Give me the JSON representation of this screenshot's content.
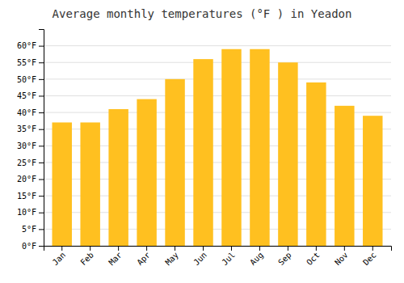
{
  "chart_data": {
    "type": "bar",
    "title": "Average monthly temperatures (°F ) in Yeadon",
    "categories": [
      "Jan",
      "Feb",
      "Mar",
      "Apr",
      "May",
      "Jun",
      "Jul",
      "Aug",
      "Sep",
      "Oct",
      "Nov",
      "Dec"
    ],
    "values": [
      37,
      37,
      41,
      44,
      50,
      56,
      59,
      59,
      55,
      49,
      42,
      39
    ],
    "color": "#FFC020",
    "ylim": [
      0,
      65
    ],
    "yticks": [
      {
        "value": 0,
        "label": "0°F"
      },
      {
        "value": 5,
        "label": "5°F"
      },
      {
        "value": 10,
        "label": "10°F"
      },
      {
        "value": 15,
        "label": "15°F"
      },
      {
        "value": 20,
        "label": "20°F"
      },
      {
        "value": 25,
        "label": "25°F"
      },
      {
        "value": 30,
        "label": "30°F"
      },
      {
        "value": 35,
        "label": "35°F"
      },
      {
        "value": 40,
        "label": "40°F"
      },
      {
        "value": 45,
        "label": "45°F"
      },
      {
        "value": 50,
        "label": "50°F"
      },
      {
        "value": 55,
        "label": "55°F"
      },
      {
        "value": 60,
        "label": "60°F"
      }
    ],
    "grid": true
  }
}
